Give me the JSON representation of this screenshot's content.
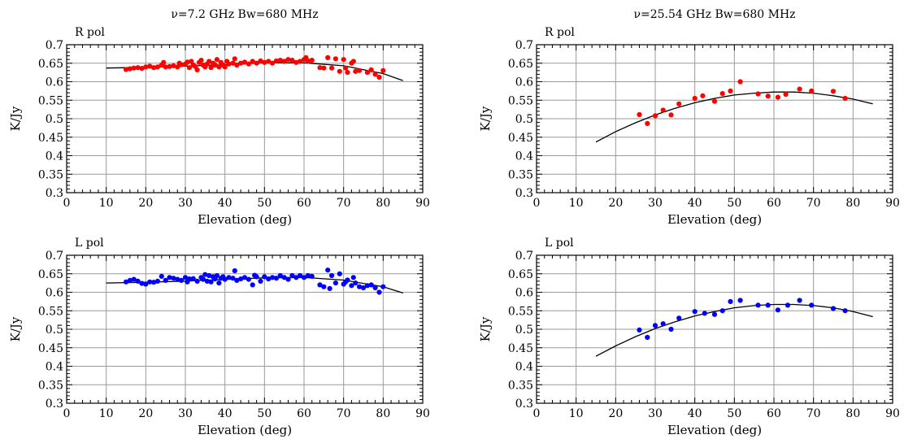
{
  "chart_data": [
    {
      "type": "scatter",
      "title": "ν=7.2 GHz Bw=680 MHz",
      "pol_label": "R pol",
      "xlabel": "Elevation (deg)",
      "ylabel": "K/Jy",
      "xlim": [
        0,
        90
      ],
      "ylim": [
        0.3,
        0.7
      ],
      "xticks": [
        0,
        10,
        20,
        30,
        40,
        50,
        60,
        70,
        80,
        90
      ],
      "yticks": [
        0.3,
        0.35,
        0.4,
        0.45,
        0.5,
        0.55,
        0.6,
        0.65,
        0.7
      ],
      "grid": true,
      "marker_color": "#ff0000",
      "series": [
        {
          "points": [
            [
              15,
              0.633
            ],
            [
              16,
              0.635
            ],
            [
              17,
              0.637
            ],
            [
              18,
              0.638
            ],
            [
              19,
              0.636
            ],
            [
              20,
              0.64
            ],
            [
              21,
              0.642
            ],
            [
              22,
              0.638
            ],
            [
              23,
              0.64
            ],
            [
              24,
              0.645
            ],
            [
              24.5,
              0.652
            ],
            [
              25,
              0.64
            ],
            [
              26,
              0.641
            ],
            [
              27,
              0.643
            ],
            [
              28,
              0.64
            ],
            [
              28.5,
              0.65
            ],
            [
              29,
              0.646
            ],
            [
              30,
              0.648
            ],
            [
              30.5,
              0.653
            ],
            [
              31,
              0.638
            ],
            [
              31.5,
              0.655
            ],
            [
              32,
              0.645
            ],
            [
              32.5,
              0.641
            ],
            [
              33,
              0.632
            ],
            [
              33.5,
              0.652
            ],
            [
              34,
              0.658
            ],
            [
              34.5,
              0.645
            ],
            [
              35,
              0.64
            ],
            [
              35.5,
              0.648
            ],
            [
              36,
              0.655
            ],
            [
              36.5,
              0.638
            ],
            [
              37,
              0.65
            ],
            [
              37.5,
              0.645
            ],
            [
              38,
              0.66
            ],
            [
              38.5,
              0.64
            ],
            [
              39,
              0.652
            ],
            [
              39.5,
              0.645
            ],
            [
              40,
              0.64
            ],
            [
              40.5,
              0.655
            ],
            [
              41,
              0.648
            ],
            [
              42,
              0.65
            ],
            [
              42.5,
              0.662
            ],
            [
              43,
              0.645
            ],
            [
              44,
              0.65
            ],
            [
              45,
              0.653
            ],
            [
              46,
              0.648
            ],
            [
              47,
              0.655
            ],
            [
              48,
              0.65
            ],
            [
              49,
              0.656
            ],
            [
              50,
              0.652
            ],
            [
              51,
              0.655
            ],
            [
              52,
              0.65
            ],
            [
              53,
              0.656
            ],
            [
              54,
              0.658
            ],
            [
              55,
              0.655
            ],
            [
              56,
              0.66
            ],
            [
              57,
              0.658
            ],
            [
              58,
              0.652
            ],
            [
              59,
              0.655
            ],
            [
              60,
              0.66
            ],
            [
              60.5,
              0.665
            ],
            [
              61,
              0.656
            ],
            [
              62,
              0.658
            ],
            [
              64,
              0.638
            ],
            [
              65,
              0.637
            ],
            [
              66,
              0.665
            ],
            [
              67,
              0.637
            ],
            [
              68,
              0.662
            ],
            [
              69,
              0.628
            ],
            [
              70,
              0.66
            ],
            [
              70.5,
              0.637
            ],
            [
              71,
              0.625
            ],
            [
              72,
              0.65
            ],
            [
              72.5,
              0.655
            ],
            [
              73,
              0.628
            ],
            [
              74,
              0.63
            ],
            [
              76,
              0.625
            ],
            [
              77,
              0.632
            ],
            [
              78,
              0.62
            ],
            [
              79,
              0.612
            ],
            [
              80,
              0.63
            ]
          ],
          "fit": [
            [
              10,
              0.637
            ],
            [
              20,
              0.639
            ],
            [
              30,
              0.642
            ],
            [
              40,
              0.646
            ],
            [
              50,
              0.651
            ],
            [
              60,
              0.651
            ],
            [
              70,
              0.643
            ],
            [
              80,
              0.622
            ],
            [
              85,
              0.603
            ]
          ]
        }
      ]
    },
    {
      "type": "scatter",
      "title": "ν=25.54 GHz Bw=680 MHz",
      "pol_label": "R pol",
      "xlabel": "Elevation (deg)",
      "ylabel": "K/Jy",
      "xlim": [
        0,
        90
      ],
      "ylim": [
        0.3,
        0.7
      ],
      "xticks": [
        0,
        10,
        20,
        30,
        40,
        50,
        60,
        70,
        80,
        90
      ],
      "yticks": [
        0.3,
        0.35,
        0.4,
        0.45,
        0.5,
        0.55,
        0.6,
        0.65,
        0.7
      ],
      "grid": true,
      "marker_color": "#ff0000",
      "series": [
        {
          "points": [
            [
              26,
              0.511
            ],
            [
              28,
              0.487
            ],
            [
              30,
              0.508
            ],
            [
              32,
              0.523
            ],
            [
              34,
              0.51
            ],
            [
              36,
              0.54
            ],
            [
              40,
              0.555
            ],
            [
              42,
              0.562
            ],
            [
              45,
              0.547
            ],
            [
              47,
              0.568
            ],
            [
              49,
              0.575
            ],
            [
              51.5,
              0.6
            ],
            [
              56,
              0.567
            ],
            [
              58.5,
              0.561
            ],
            [
              61,
              0.558
            ],
            [
              63,
              0.566
            ],
            [
              66.5,
              0.58
            ],
            [
              69.5,
              0.575
            ],
            [
              75,
              0.574
            ],
            [
              78,
              0.555
            ]
          ],
          "fit": [
            [
              15,
              0.437
            ],
            [
              20,
              0.465
            ],
            [
              25,
              0.489
            ],
            [
              30,
              0.51
            ],
            [
              35,
              0.528
            ],
            [
              40,
              0.543
            ],
            [
              45,
              0.555
            ],
            [
              50,
              0.564
            ],
            [
              55,
              0.569
            ],
            [
              60,
              0.572
            ],
            [
              65,
              0.572
            ],
            [
              70,
              0.569
            ],
            [
              75,
              0.562
            ],
            [
              80,
              0.553
            ],
            [
              85,
              0.54
            ]
          ]
        }
      ]
    },
    {
      "type": "scatter",
      "title": "",
      "pol_label": "L pol",
      "xlabel": "Elevation (deg)",
      "ylabel": "K/Jy",
      "xlim": [
        0,
        90
      ],
      "ylim": [
        0.3,
        0.7
      ],
      "xticks": [
        0,
        10,
        20,
        30,
        40,
        50,
        60,
        70,
        80,
        90
      ],
      "yticks": [
        0.3,
        0.35,
        0.4,
        0.45,
        0.5,
        0.55,
        0.6,
        0.65,
        0.7
      ],
      "grid": true,
      "marker_color": "#0000ff",
      "series": [
        {
          "points": [
            [
              15,
              0.628
            ],
            [
              16,
              0.632
            ],
            [
              17,
              0.635
            ],
            [
              18,
              0.63
            ],
            [
              19,
              0.624
            ],
            [
              20,
              0.622
            ],
            [
              21,
              0.628
            ],
            [
              22,
              0.627
            ],
            [
              23,
              0.63
            ],
            [
              24,
              0.643
            ],
            [
              25,
              0.632
            ],
            [
              26,
              0.64
            ],
            [
              27,
              0.638
            ],
            [
              28,
              0.635
            ],
            [
              29,
              0.632
            ],
            [
              30,
              0.64
            ],
            [
              30.5,
              0.628
            ],
            [
              31,
              0.636
            ],
            [
              32,
              0.637
            ],
            [
              33,
              0.63
            ],
            [
              34,
              0.64
            ],
            [
              34.5,
              0.635
            ],
            [
              35,
              0.648
            ],
            [
              35.5,
              0.63
            ],
            [
              36,
              0.645
            ],
            [
              36.5,
              0.628
            ],
            [
              37,
              0.642
            ],
            [
              37.5,
              0.636
            ],
            [
              38,
              0.645
            ],
            [
              38.5,
              0.625
            ],
            [
              39,
              0.638
            ],
            [
              39.5,
              0.642
            ],
            [
              40,
              0.635
            ],
            [
              41,
              0.64
            ],
            [
              42,
              0.638
            ],
            [
              42.5,
              0.658
            ],
            [
              43,
              0.632
            ],
            [
              44,
              0.636
            ],
            [
              45,
              0.64
            ],
            [
              46,
              0.635
            ],
            [
              47,
              0.62
            ],
            [
              47.5,
              0.646
            ],
            [
              48,
              0.642
            ],
            [
              49,
              0.63
            ],
            [
              50,
              0.642
            ],
            [
              51,
              0.636
            ],
            [
              52,
              0.64
            ],
            [
              53,
              0.638
            ],
            [
              54,
              0.645
            ],
            [
              55,
              0.64
            ],
            [
              56,
              0.635
            ],
            [
              57,
              0.645
            ],
            [
              58,
              0.64
            ],
            [
              59,
              0.645
            ],
            [
              60,
              0.64
            ],
            [
              61,
              0.645
            ],
            [
              62,
              0.643
            ],
            [
              64,
              0.62
            ],
            [
              65,
              0.615
            ],
            [
              66,
              0.66
            ],
            [
              66.5,
              0.61
            ],
            [
              67,
              0.645
            ],
            [
              68,
              0.625
            ],
            [
              69,
              0.65
            ],
            [
              70,
              0.622
            ],
            [
              70.5,
              0.628
            ],
            [
              71,
              0.633
            ],
            [
              72,
              0.618
            ],
            [
              72.5,
              0.64
            ],
            [
              73,
              0.625
            ],
            [
              74,
              0.615
            ],
            [
              75,
              0.612
            ],
            [
              76,
              0.618
            ],
            [
              77,
              0.62
            ],
            [
              78,
              0.612
            ],
            [
              79,
              0.6
            ],
            [
              80,
              0.615
            ]
          ],
          "fit": [
            [
              10,
              0.625
            ],
            [
              20,
              0.627
            ],
            [
              30,
              0.63
            ],
            [
              40,
              0.635
            ],
            [
              50,
              0.639
            ],
            [
              60,
              0.64
            ],
            [
              70,
              0.633
            ],
            [
              80,
              0.615
            ],
            [
              85,
              0.598
            ]
          ]
        }
      ]
    },
    {
      "type": "scatter",
      "title": "",
      "pol_label": "L pol",
      "xlabel": "Elevation (deg)",
      "ylabel": "K/Jy",
      "xlim": [
        0,
        90
      ],
      "ylim": [
        0.3,
        0.7
      ],
      "xticks": [
        0,
        10,
        20,
        30,
        40,
        50,
        60,
        70,
        80,
        90
      ],
      "yticks": [
        0.3,
        0.35,
        0.4,
        0.45,
        0.5,
        0.55,
        0.6,
        0.65,
        0.7
      ],
      "grid": true,
      "marker_color": "#0000ff",
      "series": [
        {
          "points": [
            [
              26,
              0.498
            ],
            [
              28,
              0.478
            ],
            [
              30,
              0.51
            ],
            [
              32,
              0.515
            ],
            [
              34,
              0.5
            ],
            [
              36,
              0.53
            ],
            [
              40,
              0.548
            ],
            [
              42.5,
              0.543
            ],
            [
              45,
              0.54
            ],
            [
              47,
              0.55
            ],
            [
              49,
              0.575
            ],
            [
              51.5,
              0.578
            ],
            [
              56,
              0.565
            ],
            [
              58.5,
              0.565
            ],
            [
              61,
              0.552
            ],
            [
              63.5,
              0.565
            ],
            [
              66.5,
              0.578
            ],
            [
              69.5,
              0.565
            ],
            [
              75,
              0.556
            ],
            [
              78,
              0.55
            ]
          ],
          "fit": [
            [
              15,
              0.427
            ],
            [
              20,
              0.455
            ],
            [
              25,
              0.48
            ],
            [
              30,
              0.502
            ],
            [
              35,
              0.52
            ],
            [
              40,
              0.536
            ],
            [
              45,
              0.548
            ],
            [
              50,
              0.558
            ],
            [
              55,
              0.564
            ],
            [
              60,
              0.567
            ],
            [
              65,
              0.567
            ],
            [
              70,
              0.564
            ],
            [
              75,
              0.558
            ],
            [
              80,
              0.548
            ],
            [
              85,
              0.534
            ]
          ]
        }
      ]
    }
  ]
}
